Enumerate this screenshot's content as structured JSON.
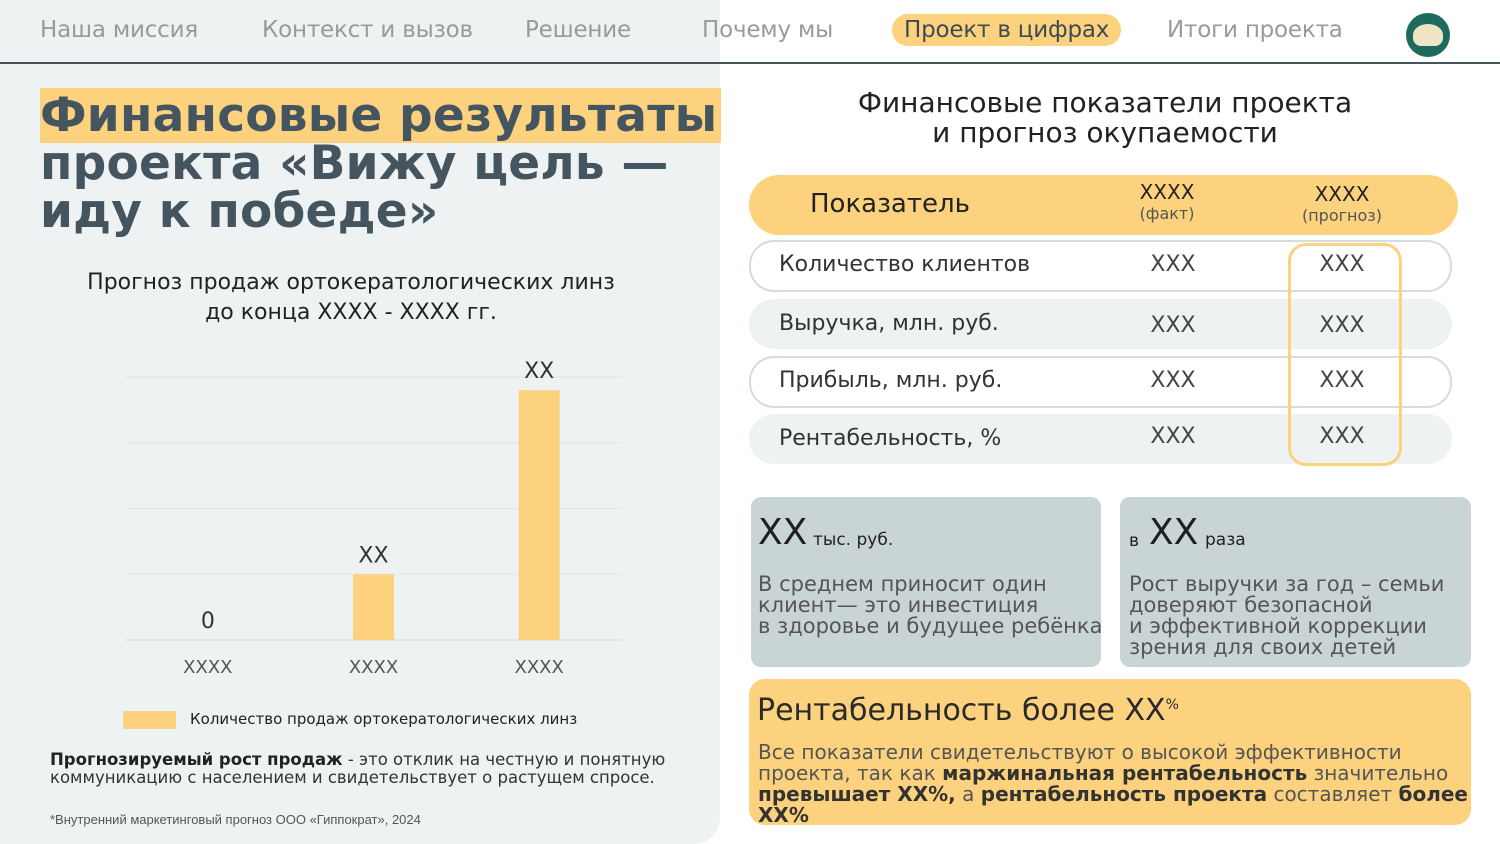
{
  "nav": {
    "items": [
      {
        "label": "Наша миссия"
      },
      {
        "label": "Контекст и вызов"
      },
      {
        "label": "Решение"
      },
      {
        "label": "Почему мы"
      },
      {
        "label": "Проект в цифрах",
        "active": true
      },
      {
        "label": "Итоги проекта"
      }
    ],
    "logo_icon": "clinic-logo-icon"
  },
  "left": {
    "title_line1": "Финансовые результаты",
    "title_line2": "проекта «Вижу цель —",
    "title_line3": "иду к победе»",
    "chart_title_line1": "Прогноз продаж ортокератологических линз",
    "chart_title_line2": "до конца XXXX - XXXX гг.",
    "note_bold": "Прогнозируемый рост продаж",
    "note_rest": " - это отклик на честную и понятную коммуникацию с населением и свидетельствует о растущем спросе.",
    "footnote": "*Внутренний маркетинговый прогноз ООО «Гиппократ», 2024"
  },
  "chart_data": {
    "type": "bar",
    "categories": [
      "XXXX",
      "XXXX",
      "XXXX"
    ],
    "values": [
      0,
      1,
      3.8
    ],
    "data_labels": [
      "0",
      "XX",
      "XX"
    ],
    "series": [
      {
        "name": "Количество продаж ортокератологических линз"
      }
    ],
    "ylim": [
      0,
      4
    ],
    "grid": true,
    "legend_position": "bottom-left",
    "bar_color": "#fcd27f"
  },
  "right": {
    "title_line1": "Финансовые показатели проекта",
    "title_line2": "и прогноз окупаемости",
    "table": {
      "header": {
        "label": "Показатель",
        "col1": "XXXX",
        "col1_sub": "(факт)",
        "col2": "XXXX",
        "col2_sub": "(прогноз)"
      },
      "rows": [
        {
          "label": "Количество клиентов",
          "fact": "XXX",
          "forecast": "XXX"
        },
        {
          "label": "Выручка, млн. руб.",
          "fact": "XXX",
          "forecast": "XXX"
        },
        {
          "label": "Прибыль, млн. руб.",
          "fact": "XXX",
          "forecast": "XXX"
        },
        {
          "label": "Рентабельность, %",
          "fact": "XXX",
          "forecast": "XXX"
        }
      ]
    },
    "card1": {
      "big": "XX",
      "small": "тыс. руб.",
      "text": [
        "В среднем приносит один",
        "клиент— это инвестиция",
        "в здоровье и будущее ребёнка"
      ]
    },
    "card2": {
      "prefix": "в",
      "big": "XX",
      "small": "раза",
      "text": [
        "Рост выручки за год – семьи",
        "доверяют безопасной",
        "и эффективной коррекции",
        "зрения для своих детей"
      ]
    },
    "summary": {
      "title": "Рентабельность более XX",
      "title_sup": "%",
      "t1": "Все показатели свидетельствуют о высокой эффективности проекта, так как ",
      "b1": "маржинальная рентабельность",
      "t2": " значительно ",
      "b2": "превышает XX%,",
      "t3": " а ",
      "b3": "рентабельность проекта",
      "t4": " составляет ",
      "b4": "более XX%"
    }
  },
  "colors": {
    "accent": "#fcd27f",
    "dark": "#44555f",
    "panel": "#eef2f2",
    "card": "#c9d5d5"
  }
}
